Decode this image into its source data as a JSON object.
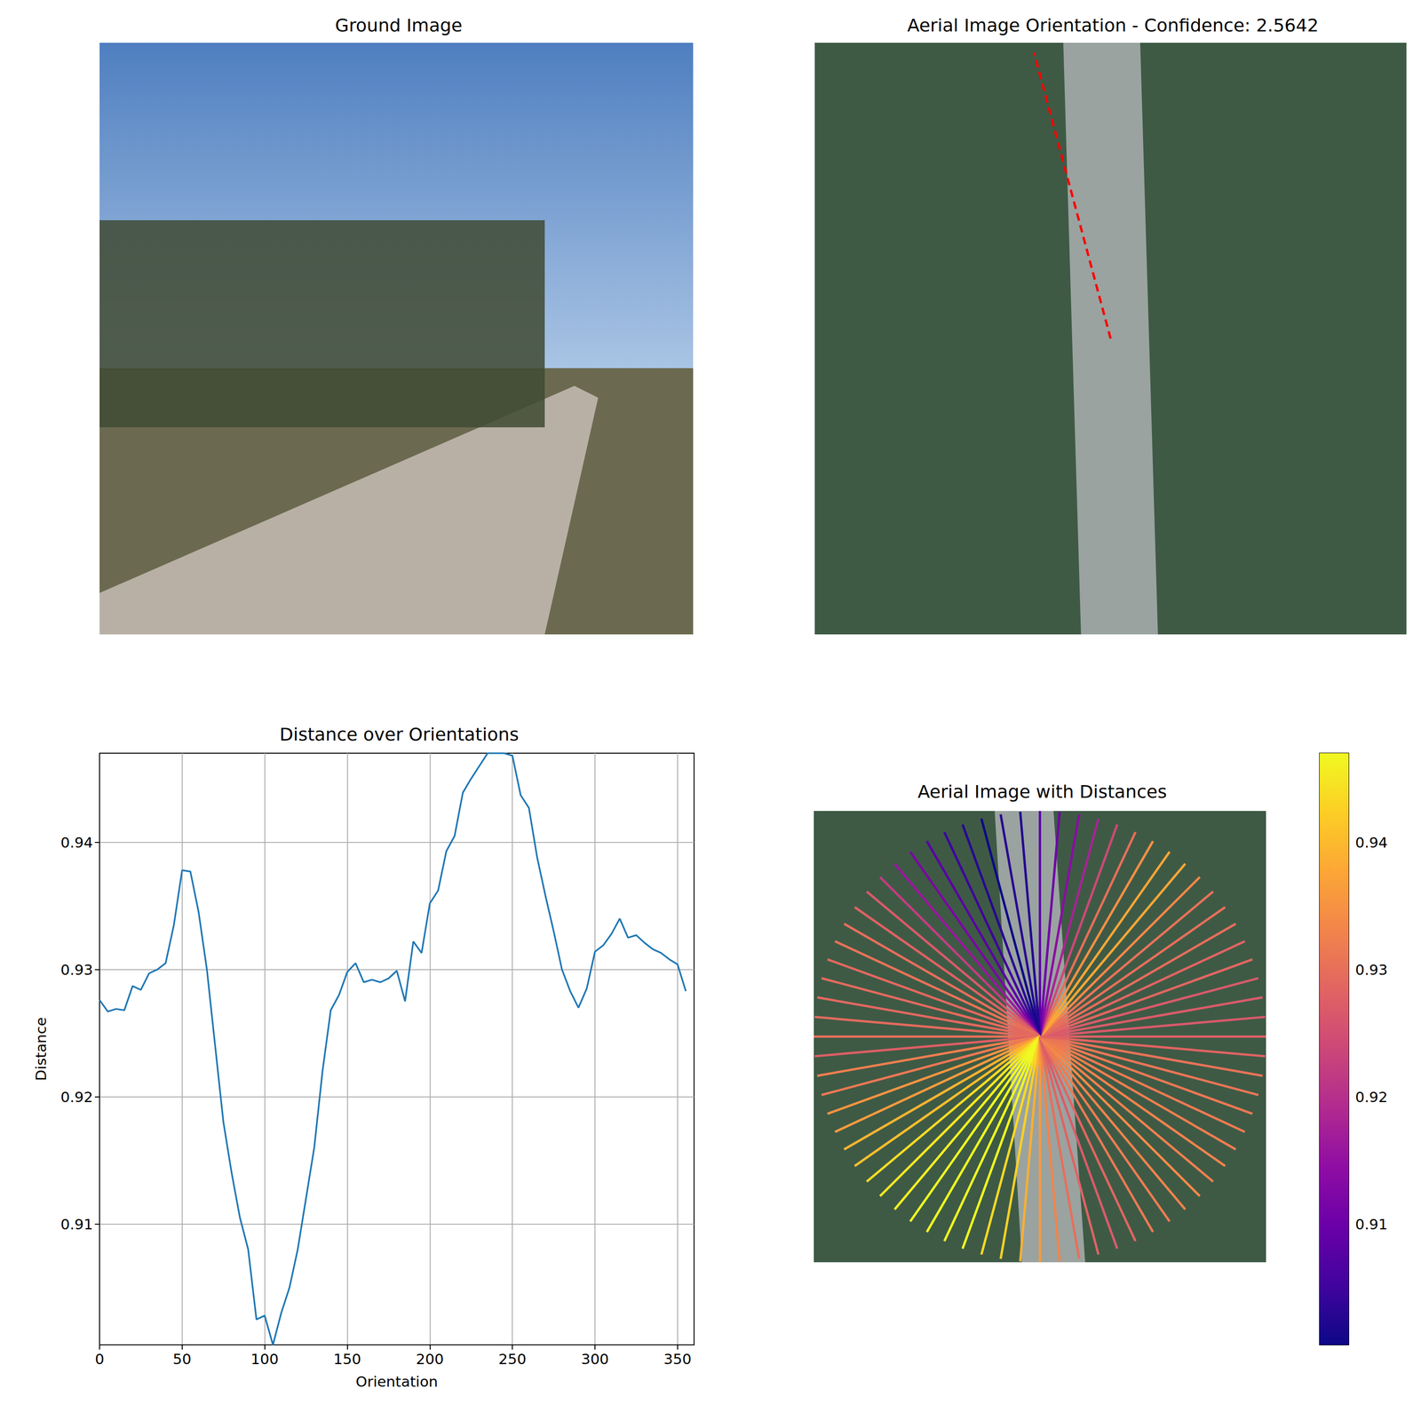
{
  "chart_data": [
    {
      "type": "image",
      "title": "Ground Image"
    },
    {
      "type": "image",
      "title": "Aerial Image Orientation - Confidence: 2.5642",
      "color": "red",
      "line_style": "dashed"
    },
    {
      "type": "line",
      "title": "Distance over Orientations",
      "x_label": "Orientation",
      "y_label": "Distance",
      "x": [
        0,
        5,
        10,
        15,
        20,
        25,
        30,
        35,
        40,
        45,
        50,
        55,
        60,
        65,
        70,
        75,
        80,
        85,
        90,
        95,
        100,
        105,
        110,
        115,
        120,
        125,
        130,
        135,
        140,
        145,
        150,
        155,
        160,
        165,
        170,
        175,
        180,
        185,
        190,
        195,
        200,
        205,
        210,
        215,
        220,
        225,
        230,
        235,
        240,
        245,
        250,
        255,
        260,
        265,
        270,
        275,
        280,
        285,
        290,
        295,
        300,
        305,
        310,
        315,
        320,
        325,
        330,
        335,
        340,
        345,
        350,
        355
      ],
      "values": [
        0.9276,
        0.9267,
        0.9269,
        0.9268,
        0.9287,
        0.9284,
        0.9297,
        0.93,
        0.9305,
        0.9335,
        0.9378,
        0.9377,
        0.9345,
        0.93,
        0.924,
        0.918,
        0.914,
        0.9105,
        0.908,
        0.9025,
        0.9028,
        0.9005,
        0.903,
        0.905,
        0.908,
        0.912,
        0.916,
        0.922,
        0.9268,
        0.928,
        0.9298,
        0.9305,
        0.929,
        0.9292,
        0.929,
        0.9293,
        0.9299,
        0.9275,
        0.9322,
        0.9313,
        0.9352,
        0.9362,
        0.9393,
        0.9405,
        0.9439,
        0.945,
        0.946,
        0.947,
        0.947,
        0.947,
        0.9468,
        0.9437,
        0.9427,
        0.9388,
        0.9358,
        0.933,
        0.93,
        0.9283,
        0.927,
        0.9285,
        0.9314,
        0.9319,
        0.9328,
        0.934,
        0.9325,
        0.9327,
        0.9321,
        0.9316,
        0.9313,
        0.9308,
        0.9304,
        0.9283
      ],
      "color": "#1f77b4",
      "xlim": [
        0,
        360
      ],
      "ylim": [
        0.9005,
        0.947
      ],
      "xticks": [
        0,
        50,
        100,
        150,
        200,
        250,
        300,
        350
      ],
      "yticks": [
        0.91,
        0.92,
        0.93,
        0.94
      ],
      "grid": true
    },
    {
      "type": "radial",
      "title": "Aerial Image with Distances",
      "color": "plasma",
      "x": [
        0,
        5,
        10,
        15,
        20,
        25,
        30,
        35,
        40,
        45,
        50,
        55,
        60,
        65,
        70,
        75,
        80,
        85,
        90,
        95,
        100,
        105,
        110,
        115,
        120,
        125,
        130,
        135,
        140,
        145,
        150,
        155,
        160,
        165,
        170,
        175,
        180,
        185,
        190,
        195,
        200,
        205,
        210,
        215,
        220,
        225,
        230,
        235,
        240,
        245,
        250,
        255,
        260,
        265,
        270,
        275,
        280,
        285,
        290,
        295,
        300,
        305,
        310,
        315,
        320,
        325,
        330,
        335,
        340,
        345,
        350,
        355
      ],
      "values": [
        0.9276,
        0.9267,
        0.9269,
        0.9268,
        0.9287,
        0.9284,
        0.9297,
        0.93,
        0.9305,
        0.9335,
        0.9378,
        0.9377,
        0.9345,
        0.93,
        0.924,
        0.918,
        0.914,
        0.9105,
        0.908,
        0.9025,
        0.9028,
        0.9005,
        0.903,
        0.905,
        0.908,
        0.912,
        0.916,
        0.922,
        0.9268,
        0.928,
        0.9298,
        0.9305,
        0.929,
        0.9292,
        0.929,
        0.9293,
        0.9299,
        0.9275,
        0.9322,
        0.9313,
        0.9352,
        0.9362,
        0.9393,
        0.9405,
        0.9439,
        0.945,
        0.946,
        0.947,
        0.947,
        0.947,
        0.9468,
        0.9437,
        0.9427,
        0.9388,
        0.9358,
        0.933,
        0.93,
        0.9283,
        0.927,
        0.9285,
        0.9314,
        0.9319,
        0.9328,
        0.934,
        0.9325,
        0.9327,
        0.9321,
        0.9316,
        0.9313,
        0.9308,
        0.9304,
        0.9283
      ],
      "colorbar": {
        "range": [
          0.9005,
          0.947
        ],
        "ticks": [
          0.91,
          0.92,
          0.93,
          0.94
        ]
      }
    }
  ]
}
